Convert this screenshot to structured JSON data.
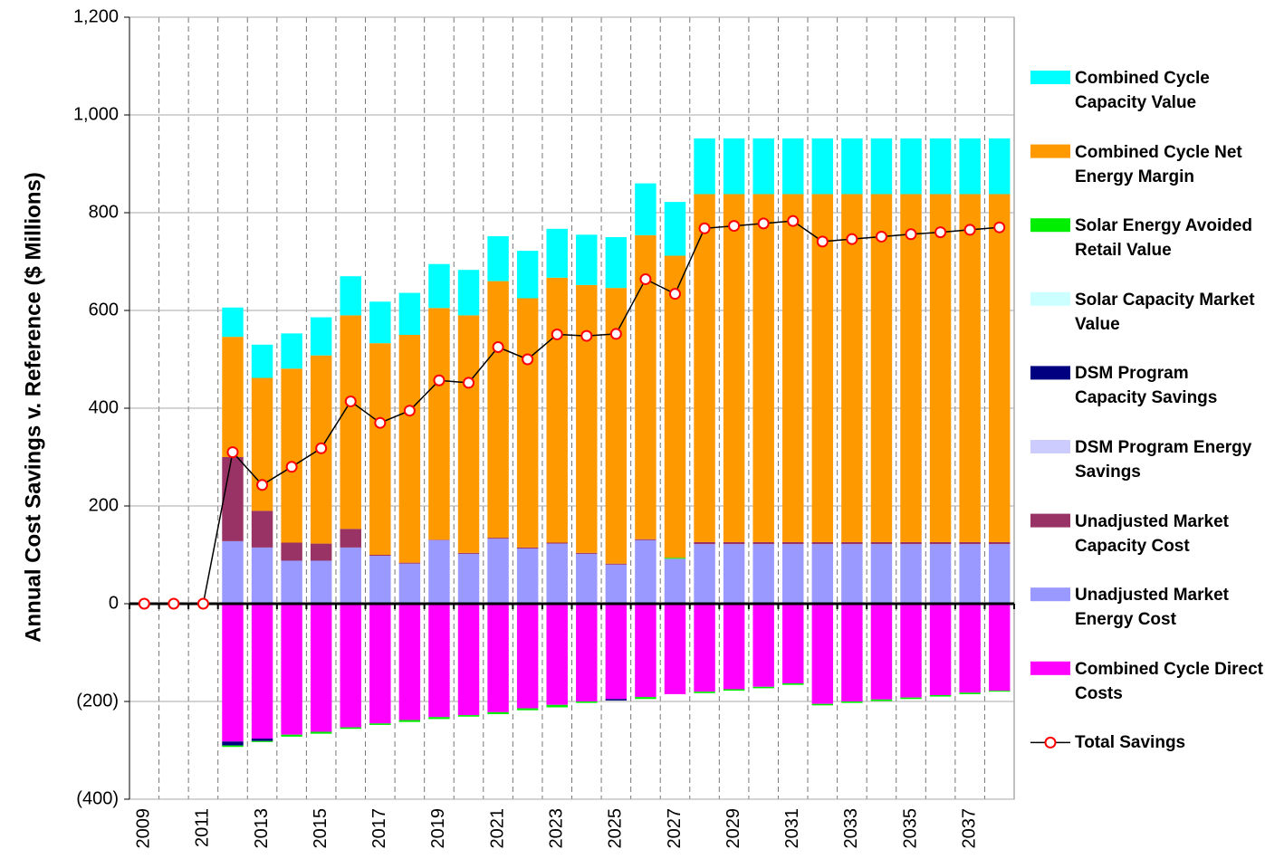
{
  "chart_data": {
    "type": "bar",
    "y_label": "Annual Cost Savings v. Reference ($ Millions)",
    "categories": [
      "2009",
      null,
      "2011",
      null,
      "2013",
      null,
      "2015",
      null,
      "2017",
      null,
      "2019",
      null,
      "2021",
      null,
      "2023",
      null,
      "2025",
      null,
      "2027",
      null,
      "2029",
      null,
      "2031",
      null,
      "2033",
      null,
      "2035",
      null,
      "2037",
      null
    ],
    "ylim": [
      -400,
      1200
    ],
    "yticks": [
      {
        "value": -400,
        "label": "(400)"
      },
      {
        "value": -200,
        "label": "(200)"
      },
      0,
      200,
      400,
      600,
      800,
      {
        "value": 1000,
        "label": "1,000"
      },
      {
        "value": 1200,
        "label": "1,200"
      }
    ],
    "grid": true,
    "legend": "right",
    "series": [
      {
        "name": "Combined Cycle Capacity Value",
        "color": "#00ffff",
        "values": [
          null,
          null,
          null,
          60,
          68,
          72,
          78,
          80,
          85,
          86,
          90,
          93,
          92,
          97,
          100,
          103,
          104,
          106,
          110,
          114,
          114,
          114,
          114,
          114,
          114,
          114,
          114,
          114,
          114,
          114
        ]
      },
      {
        "name": "Combined Cycle Net Energy Margin",
        "color": "#ff9900",
        "values": [
          null,
          null,
          null,
          246,
          272,
          356,
          385,
          437,
          433,
          466,
          474,
          486,
          525,
          510,
          542,
          548,
          564,
          622,
          618,
          712,
          712,
          712,
          712,
          712,
          712,
          712,
          712,
          712,
          712,
          712
        ]
      },
      {
        "name": "Solar Energy Avoided Retail Value",
        "color": "#00ee00",
        "values": [
          null,
          null,
          null,
          -3,
          -2,
          -4,
          -4,
          -3,
          -3,
          -4,
          -4,
          -3,
          -4,
          -4,
          -5,
          -3,
          0,
          -4,
          2,
          -3,
          -3,
          -3,
          -3,
          -3,
          -3,
          -3,
          -3,
          -3,
          -3,
          -2
        ]
      },
      {
        "name": "Solar Capacity Market Value",
        "color": "#ccffff",
        "values": [
          null,
          null,
          null,
          0,
          0,
          0,
          0,
          0,
          0,
          0,
          0,
          0,
          0,
          0,
          0,
          0,
          0,
          0,
          0,
          0,
          0,
          0,
          0,
          0,
          0,
          0,
          0,
          0,
          0,
          0
        ]
      },
      {
        "name": "DSM Program Capacity Savings",
        "color": "#000080",
        "values": [
          null,
          null,
          null,
          -8,
          -5,
          0,
          0,
          0,
          0,
          0,
          0,
          0,
          0,
          0,
          0,
          0,
          -3,
          0,
          0,
          0,
          0,
          0,
          0,
          0,
          0,
          0,
          0,
          0,
          0,
          0
        ]
      },
      {
        "name": "DSM Program Energy Savings",
        "color": "#ccccff",
        "values": [
          null,
          null,
          null,
          0,
          0,
          0,
          0,
          0,
          0,
          0,
          0,
          0,
          0,
          0,
          0,
          0,
          0,
          0,
          0,
          0,
          0,
          0,
          0,
          0,
          0,
          0,
          0,
          0,
          0,
          0
        ]
      },
      {
        "name": "Unadjusted Market Capacity Cost",
        "color": "#993366",
        "values": [
          null,
          null,
          null,
          172,
          75,
          37,
          35,
          38,
          2,
          2,
          1,
          2,
          2,
          2,
          2,
          2,
          2,
          2,
          0,
          4,
          4,
          4,
          4,
          4,
          4,
          4,
          4,
          4,
          4,
          4
        ]
      },
      {
        "name": "Unadjusted Market Energy Cost",
        "color": "#9999ff",
        "values": [
          null,
          null,
          null,
          128,
          115,
          88,
          88,
          115,
          98,
          82,
          130,
          102,
          133,
          113,
          123,
          102,
          80,
          130,
          92,
          122,
          122,
          122,
          122,
          122,
          122,
          122,
          122,
          122,
          122,
          122
        ]
      },
      {
        "name": "Combined Cycle Direct Costs",
        "color": "#ff00ff",
        "values": [
          null,
          null,
          null,
          -282,
          -276,
          -268,
          -262,
          -253,
          -245,
          -238,
          -232,
          -228,
          -222,
          -214,
          -207,
          -200,
          -195,
          -191,
          -185,
          -180,
          -175,
          -170,
          -163,
          -205,
          -200,
          -196,
          -192,
          -187,
          -182,
          -178
        ]
      },
      {
        "name": "Total Savings",
        "type": "line",
        "color": "#000000",
        "marker_color": "#ff0000",
        "values": [
          0,
          0,
          0,
          310,
          243,
          280,
          318,
          414,
          370,
          395,
          457,
          452,
          525,
          500,
          551,
          548,
          552,
          664,
          634,
          768,
          773,
          778,
          783,
          741,
          746,
          751,
          756,
          760,
          765,
          770
        ]
      }
    ]
  }
}
